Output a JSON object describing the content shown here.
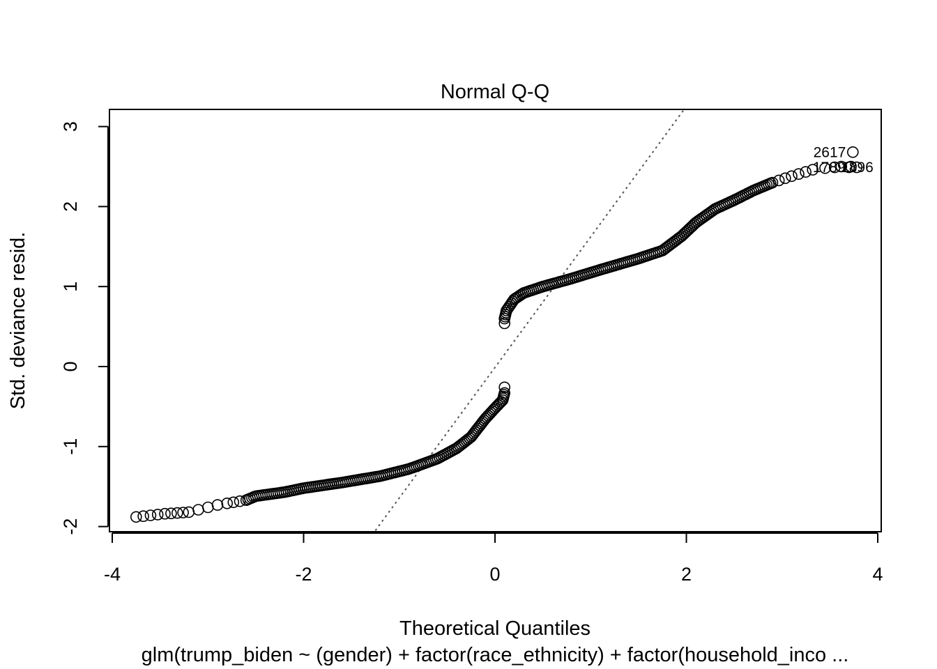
{
  "chart_data": {
    "type": "scatter",
    "title": "Normal Q-Q",
    "xlabel": "Theoretical Quantiles",
    "ylabel": "Std. deviance resid.",
    "subtitle": "glm(trump_biden ~ (gender) + factor(race_ethnicity) + factor(household_inco ...",
    "xlim": [
      -4,
      4
    ],
    "ylim": [
      -2,
      3
    ],
    "x_ticks": [
      "-4",
      "-2",
      "0",
      "2",
      "4"
    ],
    "y_ticks": [
      "-2",
      "-1",
      "0",
      "1",
      "2",
      "3"
    ],
    "grid": false,
    "legend": "none",
    "reference_line": {
      "x": [
        -1.25,
        1.98
      ],
      "y": [
        -2.05,
        3.22
      ],
      "style": "dotted",
      "color": "#555555"
    },
    "series": [
      {
        "marker": "open-circle",
        "lower_curve": [
          [
            -3.75,
            -1.88
          ],
          [
            -3.45,
            -1.84
          ],
          [
            -3.32,
            -1.83
          ],
          [
            -3.2,
            -1.82
          ],
          [
            -3.1,
            -1.79
          ],
          [
            -3.0,
            -1.76
          ],
          [
            -2.9,
            -1.73
          ],
          [
            -2.8,
            -1.71
          ],
          [
            -2.6,
            -1.67
          ],
          [
            -2.5,
            -1.62
          ],
          [
            -2.2,
            -1.57
          ],
          [
            -2.0,
            -1.52
          ],
          [
            -1.6,
            -1.45
          ],
          [
            -1.2,
            -1.37
          ],
          [
            -0.9,
            -1.28
          ],
          [
            -0.6,
            -1.15
          ],
          [
            -0.4,
            -1.02
          ],
          [
            -0.25,
            -0.88
          ],
          [
            -0.1,
            -0.65
          ],
          [
            0.0,
            -0.52
          ],
          [
            0.08,
            -0.42
          ],
          [
            0.1,
            -0.33
          ]
        ],
        "upper_curve": [
          [
            0.1,
            0.6
          ],
          [
            0.12,
            0.7
          ],
          [
            0.2,
            0.84
          ],
          [
            0.3,
            0.92
          ],
          [
            0.5,
            1.0
          ],
          [
            0.8,
            1.1
          ],
          [
            1.1,
            1.21
          ],
          [
            1.5,
            1.35
          ],
          [
            1.75,
            1.45
          ],
          [
            1.95,
            1.63
          ],
          [
            2.1,
            1.8
          ],
          [
            2.3,
            1.97
          ],
          [
            2.5,
            2.08
          ],
          [
            2.7,
            2.2
          ],
          [
            2.9,
            2.3
          ],
          [
            3.1,
            2.38
          ],
          [
            3.32,
            2.46
          ]
        ],
        "outliers": [
          {
            "x": 0.1,
            "y": -0.26
          },
          {
            "x": 0.1,
            "y": 0.54
          },
          {
            "x": 3.45,
            "y": 2.48
          },
          {
            "x": 3.55,
            "y": 2.49
          },
          {
            "x": 3.62,
            "y": 2.5
          },
          {
            "x": 3.7,
            "y": 2.49
          },
          {
            "x": 3.74,
            "y": 2.68,
            "label": "2617"
          },
          {
            "x": 3.72,
            "y": 2.5,
            "label": "1789"
          },
          {
            "x": 3.78,
            "y": 2.49,
            "label": "1896"
          }
        ]
      }
    ]
  }
}
